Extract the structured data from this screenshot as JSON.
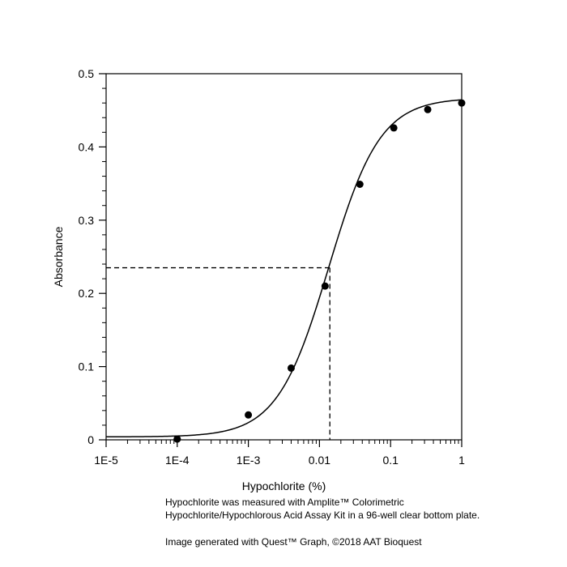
{
  "chart_data": {
    "type": "scatter",
    "xlabel": "Hypochlorite (%)",
    "ylabel": "Absorbance",
    "x_scale": "log",
    "xlim": [
      1e-05,
      1
    ],
    "ylim": [
      0,
      0.5
    ],
    "x_ticks": [
      1e-05,
      0.0001,
      0.001,
      0.01,
      0.1,
      1
    ],
    "x_tick_labels": [
      "1E-5",
      "1E-4",
      "1E-3",
      "0.01",
      "0.1",
      "1"
    ],
    "y_ticks": [
      0,
      0.1,
      0.2,
      0.3,
      0.4,
      0.5
    ],
    "y_tick_labels": [
      "0",
      "0.1",
      "0.2",
      "0.3",
      "0.4",
      "0.5"
    ],
    "grid": false,
    "series": [
      {
        "points": [
          {
            "x": 0.0001,
            "y": 0.001
          },
          {
            "x": 0.001,
            "y": 0.034
          },
          {
            "x": 0.004,
            "y": 0.098
          },
          {
            "x": 0.012,
            "y": 0.21
          },
          {
            "x": 0.037,
            "y": 0.349
          },
          {
            "x": 0.111,
            "y": 0.426
          },
          {
            "x": 0.333,
            "y": 0.451
          },
          {
            "x": 1,
            "y": 0.46
          }
        ]
      }
    ],
    "fit_curve": {
      "bottom": 0.004,
      "top": 0.467,
      "ec50": 0.0135,
      "hill": 1.2
    },
    "reference_point": {
      "x": 0.014,
      "y": 0.235
    }
  },
  "caption": {
    "line1": "Hypochlorite was measured with Amplite™ Colorimetric",
    "line2": "Hypochlorite/Hypochlorous Acid Assay Kit in a 96-well clear bottom plate.",
    "credit": "Image generated with Quest™ Graph, ©2018 AAT Bioquest"
  }
}
